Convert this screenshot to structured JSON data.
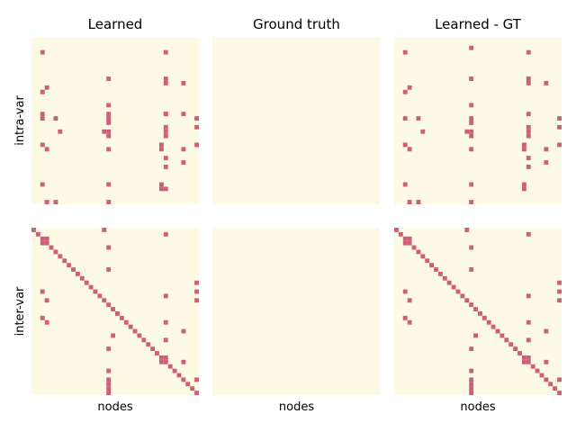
{
  "colors": {
    "background": "#fcfae5",
    "edge": "#cd6079",
    "figure": "#ffffff"
  },
  "col_titles": [
    "Learned",
    "Ground truth",
    "Learned - GT"
  ],
  "row_labels": [
    "intra-var",
    "inter-var"
  ],
  "xlabel": "nodes",
  "chart_data": [
    {
      "type": "heatmap",
      "panel": "intra-var / Learned",
      "title": "Learned",
      "ylabel": "intra-var",
      "xlabel": "",
      "grid_size": 38,
      "cells": [
        [
          2,
          17
        ],
        [
          17,
          17
        ],
        [
          30,
          17
        ],
        [
          2,
          3
        ],
        [
          30,
          3
        ],
        [
          17,
          9
        ],
        [
          30,
          9
        ],
        [
          30,
          10
        ],
        [
          34,
          10
        ],
        [
          3,
          11
        ],
        [
          2,
          12
        ],
        [
          17,
          15
        ],
        [
          5,
          18
        ],
        [
          17,
          18
        ],
        [
          30,
          17
        ],
        [
          37,
          18
        ],
        [
          2,
          18
        ],
        [
          17,
          19
        ],
        [
          37,
          20
        ],
        [
          30,
          20
        ],
        [
          17,
          21
        ],
        [
          30,
          21
        ],
        [
          6,
          21
        ],
        [
          16,
          21
        ],
        [
          30,
          22
        ],
        [
          17,
          22
        ],
        [
          34,
          17
        ],
        [
          37,
          24
        ],
        [
          2,
          24
        ],
        [
          3,
          25
        ],
        [
          17,
          25
        ],
        [
          29,
          24
        ],
        [
          29,
          25
        ],
        [
          34,
          25
        ],
        [
          34,
          28
        ],
        [
          30,
          27
        ],
        [
          30,
          29
        ],
        [
          2,
          33
        ],
        [
          29,
          33
        ],
        [
          29,
          34
        ],
        [
          17,
          33
        ],
        [
          3,
          37
        ],
        [
          5,
          37
        ],
        [
          17,
          37
        ],
        [
          30,
          34
        ]
      ]
    },
    {
      "type": "heatmap",
      "panel": "intra-var / Ground truth",
      "title": "Ground truth",
      "grid_size": 38,
      "cells": []
    },
    {
      "type": "heatmap",
      "panel": "intra-var / Learned - GT",
      "title": "Learned - GT",
      "grid_size": 38,
      "cells": [
        [
          2,
          3
        ],
        [
          17,
          2
        ],
        [
          30,
          3
        ],
        [
          17,
          9
        ],
        [
          30,
          9
        ],
        [
          30,
          10
        ],
        [
          34,
          10
        ],
        [
          3,
          11
        ],
        [
          2,
          12
        ],
        [
          17,
          15
        ],
        [
          5,
          18
        ],
        [
          17,
          18
        ],
        [
          30,
          17
        ],
        [
          37,
          18
        ],
        [
          2,
          18
        ],
        [
          17,
          19
        ],
        [
          37,
          20
        ],
        [
          30,
          20
        ],
        [
          17,
          21
        ],
        [
          30,
          21
        ],
        [
          6,
          21
        ],
        [
          16,
          21
        ],
        [
          30,
          22
        ],
        [
          17,
          22
        ],
        [
          37,
          24
        ],
        [
          2,
          24
        ],
        [
          3,
          25
        ],
        [
          17,
          25
        ],
        [
          29,
          24
        ],
        [
          29,
          25
        ],
        [
          34,
          25
        ],
        [
          34,
          28
        ],
        [
          30,
          27
        ],
        [
          30,
          29
        ],
        [
          2,
          33
        ],
        [
          29,
          33
        ],
        [
          29,
          34
        ],
        [
          17,
          33
        ],
        [
          3,
          37
        ],
        [
          5,
          37
        ],
        [
          17,
          37
        ]
      ]
    },
    {
      "type": "heatmap",
      "panel": "inter-var / Learned",
      "title": "",
      "ylabel": "inter-var",
      "xlabel": "nodes",
      "grid_size": 38,
      "cells": [
        [
          0,
          0
        ],
        [
          1,
          1
        ],
        [
          2,
          2
        ],
        [
          3,
          2
        ],
        [
          2,
          3
        ],
        [
          3,
          3
        ],
        [
          4,
          4
        ],
        [
          5,
          5
        ],
        [
          6,
          6
        ],
        [
          7,
          7
        ],
        [
          8,
          8
        ],
        [
          9,
          9
        ],
        [
          10,
          10
        ],
        [
          11,
          11
        ],
        [
          12,
          12
        ],
        [
          13,
          13
        ],
        [
          14,
          14
        ],
        [
          15,
          15
        ],
        [
          16,
          16
        ],
        [
          17,
          17
        ],
        [
          18,
          18
        ],
        [
          19,
          19
        ],
        [
          20,
          20
        ],
        [
          21,
          21
        ],
        [
          22,
          22
        ],
        [
          23,
          23
        ],
        [
          24,
          24
        ],
        [
          25,
          25
        ],
        [
          26,
          26
        ],
        [
          27,
          27
        ],
        [
          28,
          28
        ],
        [
          29,
          29
        ],
        [
          29,
          30
        ],
        [
          30,
          29
        ],
        [
          30,
          30
        ],
        [
          31,
          31
        ],
        [
          32,
          32
        ],
        [
          33,
          33
        ],
        [
          34,
          34
        ],
        [
          35,
          35
        ],
        [
          36,
          36
        ],
        [
          37,
          37
        ],
        [
          16,
          0
        ],
        [
          30,
          1
        ],
        [
          17,
          4
        ],
        [
          17,
          9
        ],
        [
          37,
          12
        ],
        [
          2,
          14
        ],
        [
          30,
          15
        ],
        [
          37,
          14
        ],
        [
          3,
          16
        ],
        [
          37,
          16
        ],
        [
          2,
          20
        ],
        [
          3,
          21
        ],
        [
          30,
          21
        ],
        [
          34,
          23
        ],
        [
          18,
          24
        ],
        [
          30,
          25
        ],
        [
          17,
          27
        ],
        [
          34,
          30
        ],
        [
          17,
          32
        ],
        [
          17,
          34
        ],
        [
          37,
          34
        ],
        [
          17,
          35
        ],
        [
          17,
          36
        ],
        [
          17,
          37
        ]
      ]
    },
    {
      "type": "heatmap",
      "panel": "inter-var / Ground truth",
      "title": "",
      "xlabel": "nodes",
      "grid_size": 38,
      "cells": []
    },
    {
      "type": "heatmap",
      "panel": "inter-var / Learned - GT",
      "title": "",
      "xlabel": "nodes",
      "grid_size": 38,
      "cells": [
        [
          0,
          0
        ],
        [
          1,
          1
        ],
        [
          2,
          2
        ],
        [
          3,
          2
        ],
        [
          2,
          3
        ],
        [
          3,
          3
        ],
        [
          4,
          4
        ],
        [
          5,
          5
        ],
        [
          6,
          6
        ],
        [
          7,
          7
        ],
        [
          8,
          8
        ],
        [
          9,
          9
        ],
        [
          10,
          10
        ],
        [
          11,
          11
        ],
        [
          12,
          12
        ],
        [
          13,
          13
        ],
        [
          14,
          14
        ],
        [
          15,
          15
        ],
        [
          16,
          16
        ],
        [
          17,
          17
        ],
        [
          18,
          18
        ],
        [
          19,
          19
        ],
        [
          20,
          20
        ],
        [
          21,
          21
        ],
        [
          22,
          22
        ],
        [
          23,
          23
        ],
        [
          24,
          24
        ],
        [
          25,
          25
        ],
        [
          26,
          26
        ],
        [
          27,
          27
        ],
        [
          28,
          28
        ],
        [
          29,
          29
        ],
        [
          29,
          30
        ],
        [
          30,
          29
        ],
        [
          30,
          30
        ],
        [
          31,
          31
        ],
        [
          32,
          32
        ],
        [
          33,
          33
        ],
        [
          34,
          34
        ],
        [
          35,
          35
        ],
        [
          36,
          36
        ],
        [
          37,
          37
        ],
        [
          16,
          0
        ],
        [
          30,
          1
        ],
        [
          17,
          4
        ],
        [
          17,
          9
        ],
        [
          37,
          12
        ],
        [
          2,
          14
        ],
        [
          30,
          15
        ],
        [
          37,
          14
        ],
        [
          3,
          16
        ],
        [
          37,
          16
        ],
        [
          2,
          20
        ],
        [
          3,
          21
        ],
        [
          30,
          21
        ],
        [
          34,
          23
        ],
        [
          18,
          24
        ],
        [
          30,
          25
        ],
        [
          17,
          27
        ],
        [
          34,
          30
        ],
        [
          17,
          32
        ],
        [
          17,
          34
        ],
        [
          37,
          34
        ],
        [
          17,
          35
        ],
        [
          17,
          36
        ],
        [
          17,
          37
        ]
      ]
    }
  ]
}
